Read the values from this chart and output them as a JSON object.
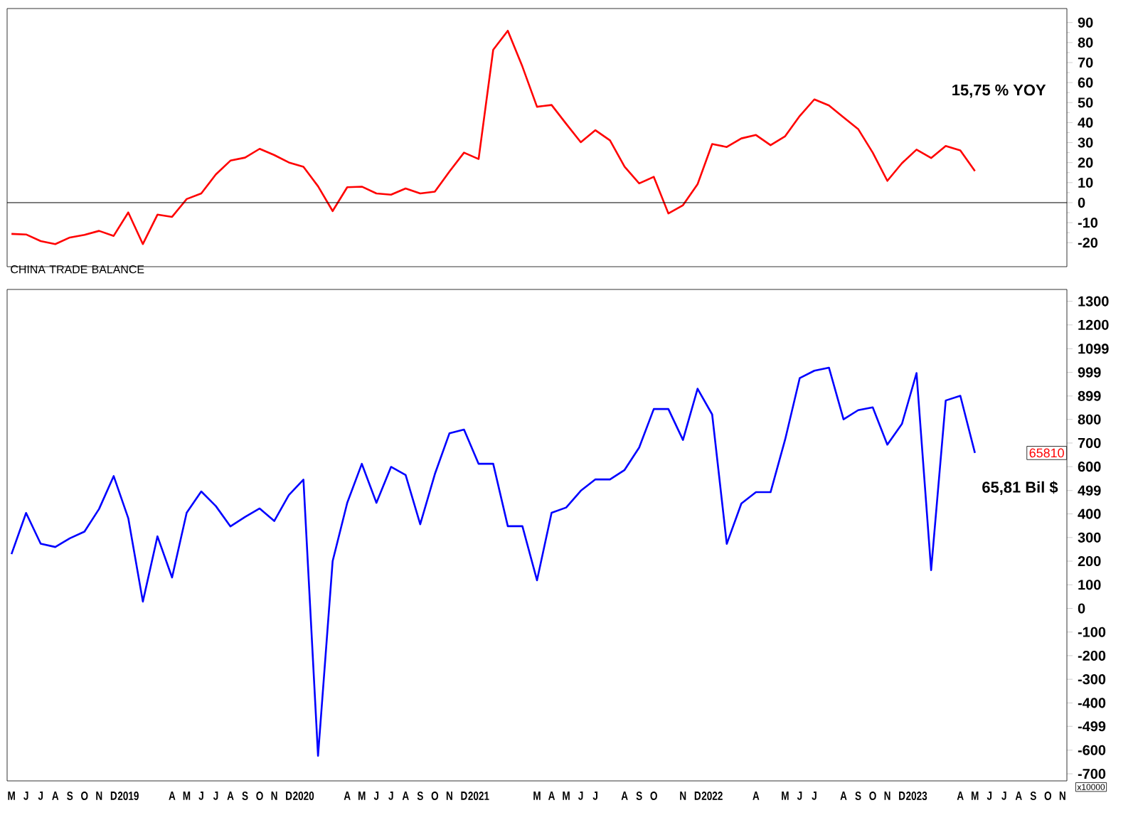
{
  "chart_data": [
    {
      "type": "line",
      "series": [
        {
          "color": "#ff0000",
          "values": [
            -15.6,
            -15.9,
            -19.2,
            -20.7,
            -17.4,
            -16.1,
            -14.1,
            -16.6,
            -4.9,
            -20.7,
            -6.0,
            -7.1,
            1.8,
            4.6,
            14.1,
            21.0,
            22.5,
            26.9,
            23.8,
            20.1,
            17.9,
            8.2,
            -4.2,
            7.7,
            8.0,
            4.6,
            4.0,
            7.1,
            4.6,
            5.5,
            15.5,
            25.0,
            21.8,
            76.4,
            85.9,
            68.0,
            47.9,
            48.8,
            39.4,
            30.2,
            36.2,
            31.1,
            18.0,
            9.6,
            12.9,
            -5.4,
            -1.3,
            9.2,
            29.3,
            27.8,
            32.1,
            33.8,
            28.7,
            33.2,
            43.3,
            51.6,
            48.6,
            42.6,
            36.8,
            25.0,
            10.9,
            19.7,
            26.5,
            22.3,
            28.3,
            26.1,
            15.8,
            null,
            null,
            null,
            null,
            null,
            null
          ]
        }
      ],
      "ylim": [
        -32,
        97
      ],
      "yticks": [
        -20,
        -10,
        0,
        10,
        20,
        30,
        40,
        50,
        60,
        70,
        80,
        90
      ],
      "ref_lines": [
        {
          "axis": "y",
          "value": 0,
          "color": "#000000"
        }
      ],
      "annotations": [
        "15,75 % YOY"
      ],
      "tick_labels": "y"
    },
    {
      "type": "line",
      "title": "CHINA TRADE BALANCE",
      "categories": [
        "M",
        "J",
        "J",
        "A",
        "S",
        "O",
        "N",
        "D",
        "2019",
        null,
        null,
        "A",
        "M",
        "J",
        "J",
        "A",
        "S",
        "O",
        "N",
        "D",
        "2020",
        null,
        null,
        "A",
        "M",
        "J",
        "J",
        "A",
        "S",
        "O",
        "N",
        "D",
        "2021",
        null,
        null,
        null,
        "M",
        "A",
        "M",
        "J",
        "J",
        null,
        "A",
        "S",
        "O",
        null,
        "N",
        "D",
        "2022",
        null,
        null,
        "A",
        null,
        "M",
        "J",
        "J",
        null,
        "A",
        "S",
        "O",
        "N",
        "D",
        "2023",
        null,
        null,
        "A",
        "M",
        "J",
        "J",
        "A",
        "S",
        "O",
        "N"
      ],
      "series": [
        {
          "color": "#0000ff",
          "values": [
            230,
            404,
            274,
            260,
            297,
            325,
            421,
            560,
            382,
            29,
            305,
            131,
            405,
            495,
            433,
            347,
            387,
            423,
            370,
            480,
            545,
            -624,
            200,
            447,
            612,
            447,
            599,
            565,
            356,
            568,
            741,
            757,
            612,
            612,
            348,
            348,
            119,
            405,
            427,
            498,
            546,
            546,
            586,
            681,
            844,
            844,
            713,
            930,
            821,
            273,
            444,
            492,
            492,
            715,
            975,
            1006,
            1019,
            800,
            839,
            851,
            693,
            781,
            996,
            162,
            880,
            900,
            658,
            null,
            null,
            null,
            null,
            null,
            null
          ]
        }
      ],
      "ylim": [
        -730,
        1350
      ],
      "yticks": [
        -700,
        -600,
        -499,
        -400,
        -300,
        -200,
        -100,
        0,
        100,
        200,
        300,
        400,
        499,
        600,
        700,
        800,
        899,
        999,
        1099,
        1200,
        1300
      ],
      "annotations": [
        "65,81 Bil $",
        "65810",
        "x10000"
      ]
    }
  ]
}
